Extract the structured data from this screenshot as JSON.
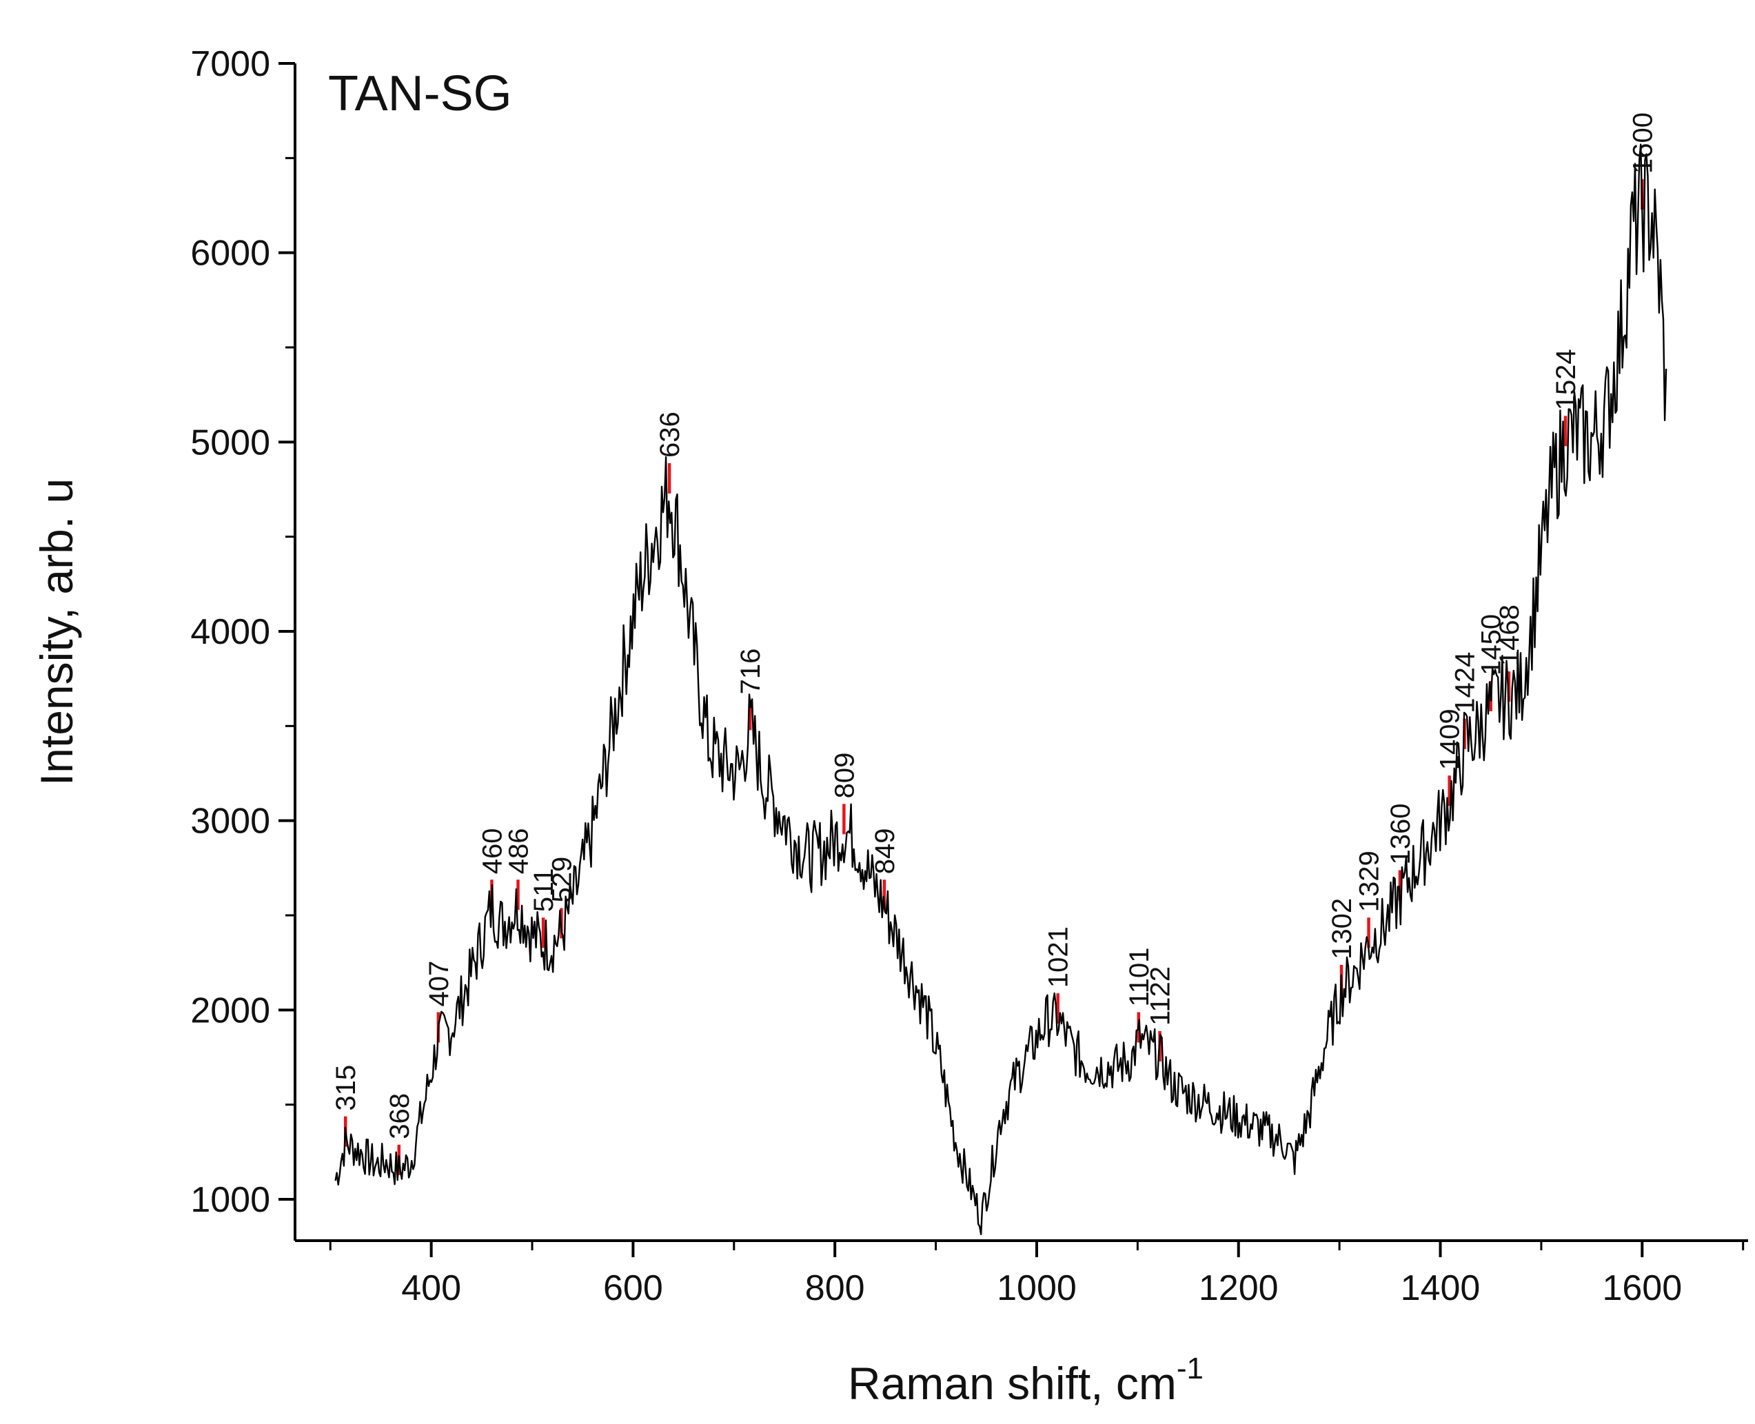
{
  "chart_data": {
    "type": "line",
    "title": "TAN-SG",
    "xlabel": "Raman shift, cm",
    "xlabel_superscript": "-1",
    "ylabel": "Intensity, arb. u",
    "xlim": [
      265,
      1705
    ],
    "ylim": [
      800,
      7000
    ],
    "xticks": [
      400,
      600,
      800,
      1000,
      1200,
      1400,
      1600
    ],
    "yticks": [
      1000,
      2000,
      3000,
      4000,
      5000,
      6000,
      7000
    ],
    "series": [
      {
        "name": "TAN-SG spectrum",
        "color": "#000000",
        "x": [
          305,
          315,
          330,
          345,
          355,
          368,
          380,
          395,
          407,
          420,
          440,
          455,
          460,
          470,
          486,
          500,
          511,
          520,
          529,
          545,
          560,
          575,
          590,
          605,
          620,
          636,
          645,
          660,
          675,
          690,
          705,
          716,
          730,
          745,
          760,
          775,
          790,
          809,
          820,
          835,
          849,
          860,
          875,
          890,
          905,
          920,
          935,
          945,
          955,
          965,
          980,
          1000,
          1010,
          1021,
          1035,
          1050,
          1065,
          1080,
          1095,
          1101,
          1110,
          1122,
          1135,
          1150,
          1170,
          1190,
          1210,
          1230,
          1245,
          1255,
          1270,
          1285,
          1302,
          1315,
          1329,
          1345,
          1360,
          1375,
          1390,
          1409,
          1418,
          1424,
          1435,
          1450,
          1460,
          1468,
          1480,
          1490,
          1500,
          1512,
          1524,
          1535,
          1550,
          1565,
          1580,
          1590,
          1600,
          1610,
          1618,
          1625
        ],
        "y": [
          1100,
          1300,
          1250,
          1180,
          1200,
          1150,
          1200,
          1550,
          1850,
          1900,
          2200,
          2450,
          2550,
          2450,
          2550,
          2400,
          2350,
          2350,
          2400,
          2650,
          2950,
          3350,
          3800,
          4200,
          4500,
          4750,
          4500,
          3900,
          3400,
          3300,
          3250,
          3500,
          3200,
          3050,
          2900,
          2800,
          2850,
          2950,
          2900,
          2700,
          2550,
          2400,
          2200,
          2000,
          1700,
          1300,
          1050,
          900,
          1150,
          1450,
          1650,
          1850,
          1950,
          1950,
          1800,
          1700,
          1700,
          1700,
          1750,
          1850,
          1800,
          1750,
          1600,
          1550,
          1500,
          1450,
          1400,
          1350,
          1300,
          1200,
          1450,
          1800,
          2100,
          2200,
          2350,
          2450,
          2600,
          2750,
          2900,
          3100,
          3250,
          3400,
          3450,
          3600,
          3650,
          3650,
          3700,
          4000,
          4400,
          4800,
          5000,
          5050,
          5000,
          5150,
          5600,
          6100,
          6250,
          6200,
          5800,
          5100
        ]
      }
    ],
    "peaks": [
      315,
      368,
      407,
      460,
      486,
      511,
      529,
      636,
      716,
      809,
      849,
      1021,
      1101,
      1122,
      1302,
      1329,
      1360,
      1409,
      1424,
      1450,
      1468,
      1524,
      1600
    ],
    "peak_labels": [
      "315",
      "368",
      "407",
      "460",
      "486",
      "511",
      "529",
      "636",
      "716",
      "809",
      "849",
      "1021",
      "1101",
      "1122",
      "1302",
      "1329",
      "1360",
      "1409",
      "1424",
      "1450",
      "1468",
      "1524",
      "1600"
    ],
    "peak_marker_color": "#e8141b",
    "grid": false,
    "legend": "none"
  }
}
